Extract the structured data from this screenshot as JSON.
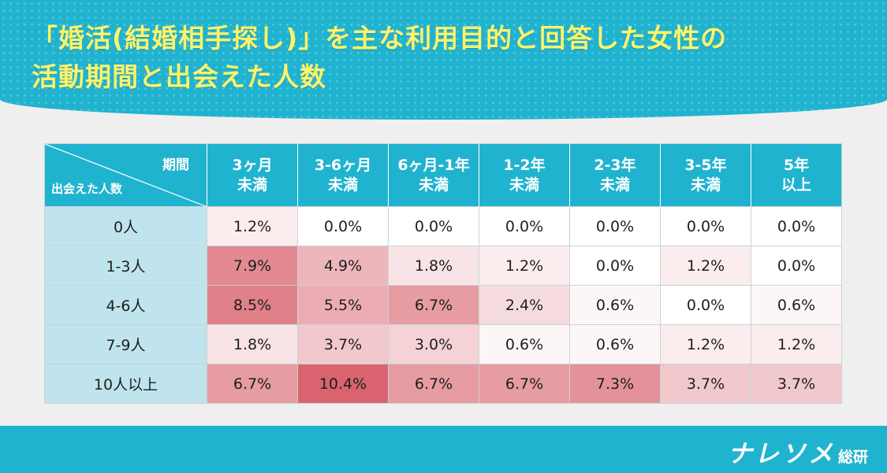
{
  "title": "「婚活(結婚相手探し)」を主な利用目的と回答した女性の\n活動期間と出会えた人数",
  "brand": {
    "main": "ナレソメ",
    "sub": "総研"
  },
  "colors": {
    "header": "#20b3cf",
    "title": "#fff36a",
    "row_header": "#bfe4ee",
    "heat_max": "#d9646f"
  },
  "chart_data": {
    "type": "table",
    "title": "「婚活(結婚相手探し)」を主な利用目的と回答した女性の活動期間と出会えた人数",
    "corner_top": "期間",
    "corner_bottom": "出会えた人数",
    "columns": [
      "3ヶ月\n未満",
      "3-6ヶ月\n未満",
      "6ヶ月-1年\n未満",
      "1-2年\n未満",
      "2-3年\n未満",
      "3-5年\n未満",
      "5年\n以上"
    ],
    "rows": [
      {
        "label": "0人",
        "values": [
          "1.2%",
          "0.0%",
          "0.0%",
          "0.0%",
          "0.0%",
          "0.0%",
          "0.0%"
        ]
      },
      {
        "label": "1-3人",
        "values": [
          "7.9%",
          "4.9%",
          "1.8%",
          "1.2%",
          "0.0%",
          "1.2%",
          "0.0%"
        ]
      },
      {
        "label": "4-6人",
        "values": [
          "8.5%",
          "5.5%",
          "6.7%",
          "2.4%",
          "0.6%",
          "0.0%",
          "0.6%"
        ]
      },
      {
        "label": "7-9人",
        "values": [
          "1.8%",
          "3.7%",
          "3.0%",
          "0.6%",
          "0.6%",
          "1.2%",
          "1.2%"
        ]
      },
      {
        "label": "10人以上",
        "values": [
          "6.7%",
          "10.4%",
          "6.7%",
          "6.7%",
          "7.3%",
          "3.7%",
          "3.7%"
        ]
      }
    ]
  }
}
